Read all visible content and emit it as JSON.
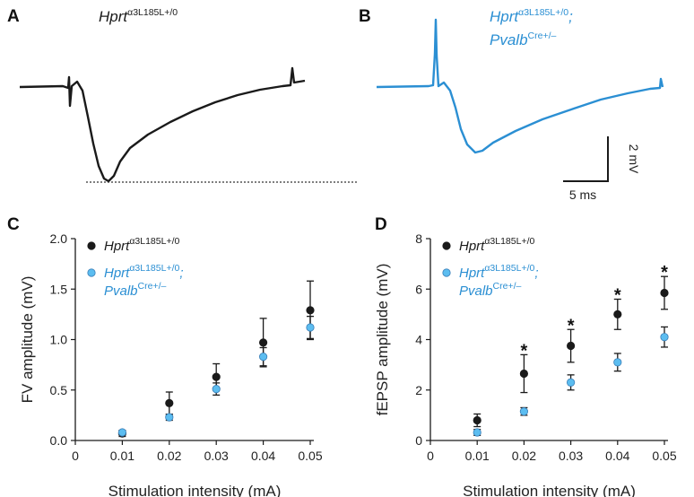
{
  "colors": {
    "black": "#1a1a1a",
    "blue": "#2b8fd3",
    "blue_marker": "#5cbdf0"
  },
  "panel_a": {
    "letter": "A",
    "genotype_base": "Hprt",
    "genotype_sup": "α3L185L+/0"
  },
  "panel_b": {
    "letter": "B",
    "genotype_line1_base": "Hprt",
    "genotype_line1_sup": "α3L185L+/0",
    "genotype_line1_suffix": ";",
    "genotype_line2_base": "Pvalb",
    "genotype_line2_sup": "Cre+/–"
  },
  "scale_bar": {
    "vertical_label": "2 mV",
    "horizontal_label": "5 ms"
  },
  "chart_data": [
    {
      "panel": "C",
      "type": "scatter",
      "ylabel": "FV amplitude (mV)",
      "xlabel": "Stimulation intensity (mA)",
      "xlim": [
        0,
        0.05
      ],
      "ylim": [
        0,
        2.0
      ],
      "x_ticks": [
        "0",
        "0.01",
        "0.02",
        "0.03",
        "0.04",
        "0.05"
      ],
      "y_ticks": [
        "0.0",
        "0.5",
        "1.0",
        "1.5",
        "2.0"
      ],
      "x": [
        0.01,
        0.02,
        0.03,
        0.04,
        0.05
      ],
      "legend_position": "top-left",
      "series": [
        {
          "color_key": "black",
          "legend_base": "Hprt",
          "legend_sup": "α3L185L+/0",
          "legend_line2_base": "",
          "legend_line2_sup": "",
          "values": [
            0.07,
            0.37,
            0.63,
            0.97,
            1.29
          ],
          "err": [
            0.03,
            0.11,
            0.13,
            0.24,
            0.29
          ]
        },
        {
          "color_key": "blue_marker",
          "legend_base": "Hprt",
          "legend_sup": "α3L185L+/0",
          "legend_suffix": ";",
          "legend_line2_base": "Pvalb",
          "legend_line2_sup": "Cre+/–",
          "values": [
            0.08,
            0.23,
            0.51,
            0.83,
            1.12
          ],
          "err": [
            0.02,
            0.03,
            0.06,
            0.09,
            0.11
          ]
        }
      ]
    },
    {
      "panel": "D",
      "type": "scatter",
      "ylabel": "fEPSP amplitude (mV)",
      "xlabel": "Stimulation intensity (mA)",
      "xlim": [
        0,
        0.05
      ],
      "ylim": [
        0,
        8
      ],
      "x_ticks": [
        "0",
        "0.01",
        "0.02",
        "0.03",
        "0.04",
        "0.05"
      ],
      "y_ticks": [
        "0",
        "2",
        "4",
        "6",
        "8"
      ],
      "x": [
        0.01,
        0.02,
        0.03,
        0.04,
        0.05
      ],
      "legend_position": "top-left",
      "significance": [
        "",
        "*",
        "*",
        "*",
        "*"
      ],
      "series": [
        {
          "color_key": "black",
          "legend_base": "Hprt",
          "legend_sup": "α3L185L+/0",
          "legend_line2_base": "",
          "legend_line2_sup": "",
          "values": [
            0.8,
            2.65,
            3.75,
            5.0,
            5.85
          ],
          "err": [
            0.25,
            0.75,
            0.65,
            0.6,
            0.65
          ]
        },
        {
          "color_key": "blue_marker",
          "legend_base": "Hprt",
          "legend_sup": "α3L185L+/0",
          "legend_suffix": ";",
          "legend_line2_base": "Pvalb",
          "legend_line2_sup": "Cre+/–",
          "values": [
            0.32,
            1.15,
            2.3,
            3.1,
            4.1
          ],
          "err": [
            0.12,
            0.15,
            0.3,
            0.35,
            0.4
          ]
        }
      ]
    }
  ]
}
